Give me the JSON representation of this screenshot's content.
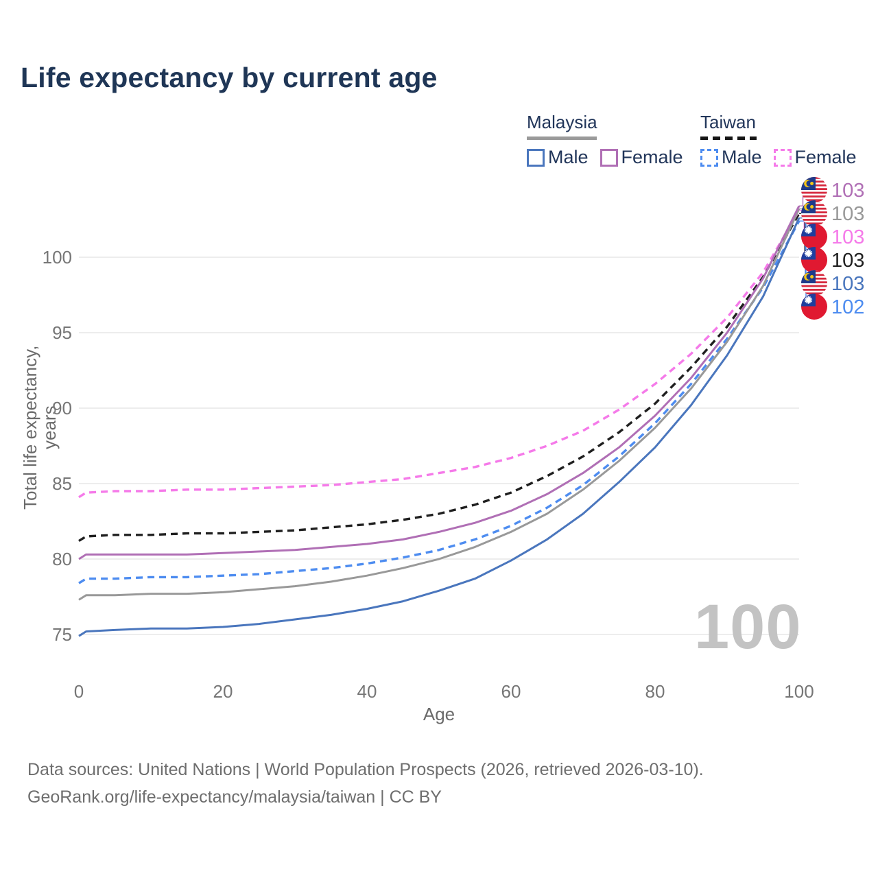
{
  "title": "Life expectancy by current age",
  "legend": {
    "groups": [
      {
        "label": "Malaysia",
        "line_style": "solid",
        "items": [
          {
            "label": "Male",
            "color": "#4a76bd"
          },
          {
            "label": "Female",
            "color": "#b06fb5"
          }
        ]
      },
      {
        "label": "Taiwan",
        "line_style": "dashed",
        "items": [
          {
            "label": "Male",
            "color": "#4d8cf0"
          },
          {
            "label": "Female",
            "color": "#f57ae9"
          }
        ]
      }
    ]
  },
  "chart_data": {
    "type": "line",
    "title": "Life expectancy by current age",
    "xlabel": "Age",
    "ylabel": "Total life expectancy, years",
    "xlim": [
      0,
      100
    ],
    "ylim": [
      73,
      104
    ],
    "xticks": [
      0,
      20,
      40,
      60,
      80,
      100
    ],
    "yticks": [
      75,
      80,
      85,
      90,
      95,
      100
    ],
    "xtick_labels": [
      "0",
      "20",
      "40",
      "60",
      "80",
      "100"
    ],
    "ytick_labels_top_down": [
      "100",
      "95",
      "90",
      "85",
      "80",
      "75"
    ],
    "grid": "horizontal",
    "legend_position": "top-right",
    "frame_label": "100",
    "x": [
      0,
      1,
      5,
      10,
      15,
      20,
      25,
      30,
      35,
      40,
      45,
      50,
      55,
      60,
      65,
      70,
      75,
      80,
      85,
      90,
      95,
      100
    ],
    "series": [
      {
        "name": "Malaysia Female",
        "country": "Malaysia",
        "sex": "Female",
        "color": "#b06fb5",
        "dash": false,
        "end_label": "103",
        "values": [
          80.0,
          80.3,
          80.3,
          80.3,
          80.3,
          80.4,
          80.5,
          80.6,
          80.8,
          81.0,
          81.3,
          81.8,
          82.4,
          83.2,
          84.3,
          85.7,
          87.4,
          89.5,
          92.0,
          95.0,
          98.6,
          103.4
        ]
      },
      {
        "name": "Malaysia Both sexes",
        "country": "Malaysia",
        "sex": "Both",
        "color": "#999999",
        "dash": false,
        "end_label": "103",
        "values": [
          77.3,
          77.6,
          77.6,
          77.7,
          77.7,
          77.8,
          78.0,
          78.2,
          78.5,
          78.9,
          79.4,
          80.0,
          80.8,
          81.8,
          83.0,
          84.6,
          86.5,
          88.7,
          91.3,
          94.4,
          98.1,
          103.2
        ]
      },
      {
        "name": "Taiwan Female",
        "country": "Taiwan",
        "sex": "Female",
        "color": "#f57ae9",
        "dash": true,
        "end_label": "103",
        "values": [
          84.1,
          84.4,
          84.5,
          84.5,
          84.6,
          84.6,
          84.7,
          84.8,
          84.9,
          85.1,
          85.3,
          85.7,
          86.1,
          86.7,
          87.5,
          88.5,
          89.9,
          91.6,
          93.6,
          96.0,
          99.0,
          103.1
        ]
      },
      {
        "name": "Taiwan Both sexes",
        "country": "Taiwan",
        "sex": "Both",
        "color": "#1f1f1f",
        "dash": true,
        "end_label": "103",
        "values": [
          81.2,
          81.5,
          81.6,
          81.6,
          81.7,
          81.7,
          81.8,
          81.9,
          82.1,
          82.3,
          82.6,
          83.0,
          83.6,
          84.4,
          85.5,
          86.8,
          88.4,
          90.3,
          92.7,
          95.4,
          98.7,
          102.9
        ]
      },
      {
        "name": "Malaysia Male",
        "country": "Malaysia",
        "sex": "Male",
        "color": "#4a76bd",
        "dash": false,
        "end_label": "103",
        "values": [
          74.9,
          75.2,
          75.3,
          75.4,
          75.4,
          75.5,
          75.7,
          76.0,
          76.3,
          76.7,
          77.2,
          77.9,
          78.7,
          79.9,
          81.3,
          83.0,
          85.1,
          87.4,
          90.2,
          93.5,
          97.4,
          102.6
        ]
      },
      {
        "name": "Taiwan Male",
        "country": "Taiwan",
        "sex": "Male",
        "color": "#4d8cf0",
        "dash": true,
        "end_label": "102",
        "values": [
          78.4,
          78.7,
          78.7,
          78.8,
          78.8,
          78.9,
          79.0,
          79.2,
          79.4,
          79.7,
          80.1,
          80.6,
          81.3,
          82.2,
          83.4,
          84.9,
          86.8,
          89.0,
          91.6,
          94.6,
          98.0,
          102.4
        ]
      }
    ]
  },
  "footer": {
    "line1": "Data sources: United Nations | World Population Prospects (2026, retrieved 2026-03-10).",
    "line2": "GeoRank.org/life-expectancy/malaysia/taiwan | CC BY"
  }
}
